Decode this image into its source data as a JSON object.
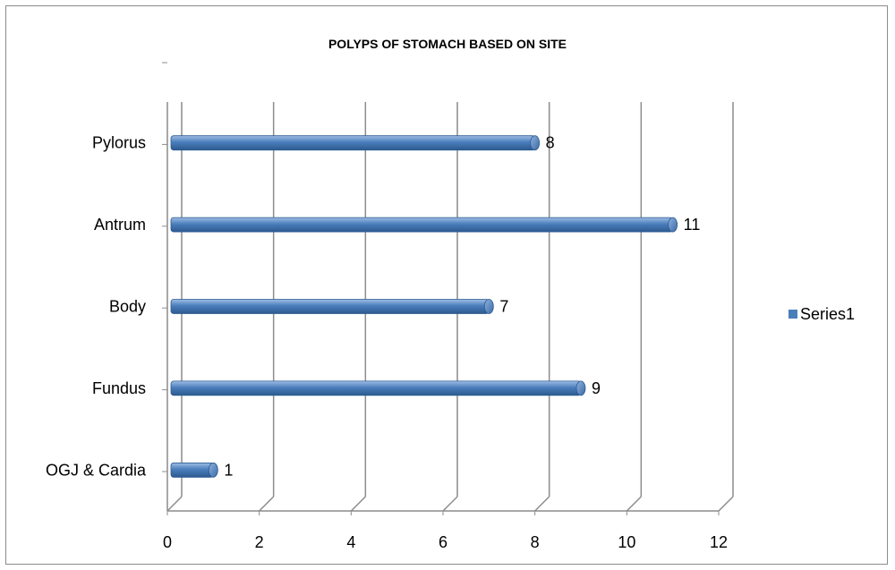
{
  "chart_data": {
    "type": "bar",
    "orientation": "horizontal",
    "title": "POLYPS OF STOMACH BASED ON SITE",
    "categories": [
      "OGJ & Cardia",
      "Fundus",
      "Body",
      "Antrum",
      "Pylorus"
    ],
    "series": [
      {
        "name": "Series1",
        "values": [
          1,
          9,
          7,
          11,
          8
        ],
        "color": "#4a7ebb"
      }
    ],
    "xlim": [
      0,
      12
    ],
    "x_ticks": [
      "0",
      "2",
      "4",
      "6",
      "8",
      "10",
      "12"
    ],
    "grid": true,
    "data_labels": true,
    "legend_position": "right"
  }
}
